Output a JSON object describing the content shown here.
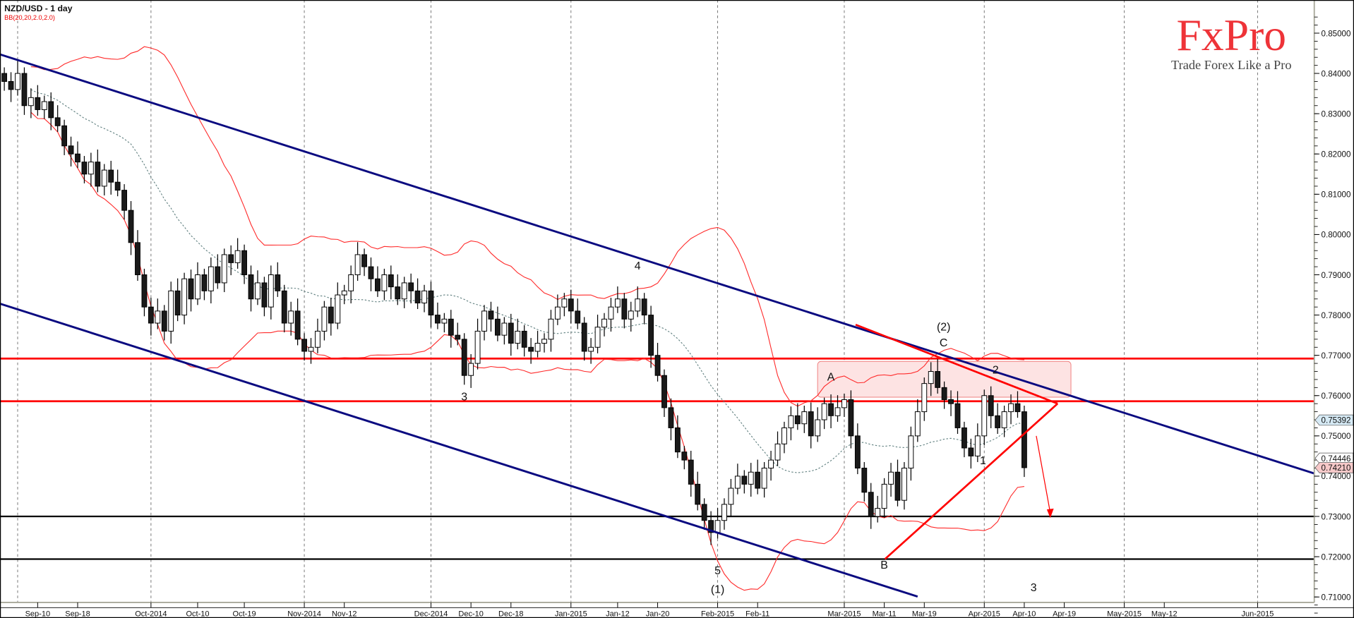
{
  "header": {
    "title": "NZD/USD - 1 day",
    "indicator": "BB(20,20,2.0,2.0)"
  },
  "logo": {
    "brand": "FxPro",
    "tagline": "Trade Forex Like a Pro"
  },
  "colors": {
    "bull_body": "#ffffff",
    "bear_body": "#1a1a1a",
    "bands": "#ff2a2a",
    "middle_band": "#5f7f7f",
    "channel": "#0a0a80",
    "resistance": "#ff0000",
    "support": "#000000",
    "zone": "#fde3e3"
  },
  "chart_data": {
    "type": "candlestick",
    "symbol": "NZD/USD",
    "timeframe": "1 day",
    "ylim": [
      0.705,
      0.8565
    ],
    "y_ticks": [
      "0.71000",
      "0.72000",
      "0.73000",
      "0.74000",
      "0.75000",
      "0.76000",
      "0.77000",
      "0.78000",
      "0.79000",
      "0.80000",
      "0.81000",
      "0.82000",
      "0.83000",
      "0.84000",
      "0.85000"
    ],
    "x_ticks": [
      {
        "label": "Sep-10",
        "index": 5
      },
      {
        "label": "Sep-18",
        "index": 11
      },
      {
        "label": "Oct-2014",
        "index": 22
      },
      {
        "label": "Oct-10",
        "index": 29
      },
      {
        "label": "Oct-19",
        "index": 36
      },
      {
        "label": "Nov-2014",
        "index": 45
      },
      {
        "label": "Nov-12",
        "index": 51
      },
      {
        "label": "Dec-2014",
        "index": 64
      },
      {
        "label": "Dec-10",
        "index": 70
      },
      {
        "label": "Dec-18",
        "index": 76
      },
      {
        "label": "Jan-2015",
        "index": 85
      },
      {
        "label": "Jan-12",
        "index": 92
      },
      {
        "label": "Jan-20",
        "index": 98
      },
      {
        "label": "Feb-2015",
        "index": 107
      },
      {
        "label": "Feb-11",
        "index": 113
      },
      {
        "label": "Mar-2015",
        "index": 126
      },
      {
        "label": "Mar-11",
        "index": 132
      },
      {
        "label": "Mar-19",
        "index": 138
      },
      {
        "label": "Apr-2015",
        "index": 147
      },
      {
        "label": "Apr-10",
        "index": 153
      },
      {
        "label": "Apr-19",
        "index": 159
      },
      {
        "label": "May-2015",
        "index": 168
      },
      {
        "label": "May-12",
        "index": 174
      },
      {
        "label": "Jun-2015",
        "index": 188
      }
    ],
    "month_lines": [
      2,
      22,
      45,
      64,
      85,
      107,
      126,
      147,
      168,
      188
    ],
    "first_open": 0.84,
    "closes": [
      0.838,
      0.836,
      0.84,
      0.832,
      0.834,
      0.831,
      0.833,
      0.829,
      0.827,
      0.822,
      0.82,
      0.818,
      0.815,
      0.818,
      0.812,
      0.816,
      0.813,
      0.811,
      0.806,
      0.798,
      0.79,
      0.782,
      0.778,
      0.781,
      0.776,
      0.786,
      0.78,
      0.789,
      0.784,
      0.79,
      0.786,
      0.792,
      0.788,
      0.795,
      0.793,
      0.796,
      0.79,
      0.784,
      0.788,
      0.782,
      0.79,
      0.786,
      0.778,
      0.781,
      0.774,
      0.771,
      0.772,
      0.776,
      0.782,
      0.778,
      0.785,
      0.786,
      0.79,
      0.795,
      0.792,
      0.789,
      0.786,
      0.79,
      0.787,
      0.784,
      0.788,
      0.786,
      0.783,
      0.786,
      0.78,
      0.778,
      0.779,
      0.775,
      0.774,
      0.765,
      0.768,
      0.776,
      0.781,
      0.779,
      0.775,
      0.778,
      0.773,
      0.776,
      0.772,
      0.771,
      0.773,
      0.774,
      0.779,
      0.782,
      0.784,
      0.781,
      0.778,
      0.771,
      0.772,
      0.777,
      0.779,
      0.782,
      0.784,
      0.779,
      0.781,
      0.784,
      0.78,
      0.77,
      0.765,
      0.757,
      0.752,
      0.746,
      0.744,
      0.738,
      0.733,
      0.729,
      0.726,
      0.729,
      0.733,
      0.737,
      0.74,
      0.738,
      0.741,
      0.737,
      0.742,
      0.744,
      0.748,
      0.752,
      0.755,
      0.753,
      0.756,
      0.75,
      0.754,
      0.758,
      0.755,
      0.757,
      0.759,
      0.75,
      0.742,
      0.736,
      0.73,
      0.732,
      0.738,
      0.741,
      0.734,
      0.742,
      0.75,
      0.756,
      0.763,
      0.766,
      0.762,
      0.759,
      0.758,
      0.752,
      0.747,
      0.745,
      0.75,
      0.76,
      0.755,
      0.752,
      0.756,
      0.758,
      0.756,
      0.7421
    ],
    "bollinger": {
      "period": 20,
      "deviations": 2.0
    },
    "horizontal_levels": {
      "resistance": [
        0.7692,
        0.7586
      ],
      "support": [
        0.73,
        0.7194
      ]
    },
    "channel_lines": [
      {
        "name": "upper-channel",
        "from": [
          -0.6,
          0.8447
        ],
        "to": [
          197,
          0.7404
        ]
      },
      {
        "name": "lower-channel",
        "from": [
          -0.6,
          0.7828
        ],
        "to": [
          137,
          0.7101
        ]
      }
    ],
    "triangle": {
      "upper": {
        "from": [
          127.7,
          0.7776
        ],
        "to": [
          158,
          0.758
        ]
      },
      "lower": {
        "from": [
          132.1,
          0.7194
        ],
        "to": [
          158,
          0.758
        ]
      }
    },
    "target_arrow": {
      "from": [
        154.8,
        0.75
      ],
      "to": [
        156.9,
        0.7296
      ]
    },
    "resistance_zone": {
      "index_range": [
        122,
        160
      ],
      "price_range": [
        0.7596,
        0.7685
      ]
    },
    "wave_labels": [
      {
        "text": "4",
        "index": 95,
        "price": 0.7913
      },
      {
        "text": "3",
        "index": 69,
        "price": 0.7588
      },
      {
        "text": "5",
        "index": 107,
        "price": 0.7156
      },
      {
        "text": "(1)",
        "index": 107,
        "price": 0.711
      },
      {
        "text": "A",
        "index": 124,
        "price": 0.7637
      },
      {
        "text": "B",
        "index": 132,
        "price": 0.717
      },
      {
        "text": "(2)",
        "index": 140.9,
        "price": 0.7762
      },
      {
        "text": "C",
        "index": 140.9,
        "price": 0.7722
      },
      {
        "text": "2",
        "index": 148.7,
        "price": 0.7655
      },
      {
        "text": "1",
        "index": 146.8,
        "price": 0.743
      },
      {
        "text": "3",
        "index": 154.4,
        "price": 0.7114
      }
    ],
    "price_labels": [
      {
        "text": "0.75392",
        "value": 0.75392,
        "bg": "#d6eaf5"
      },
      {
        "text": "0.74446",
        "value": 0.74446,
        "bg": "#ffffff"
      },
      {
        "text": "0.74210",
        "value": 0.7421,
        "bg": "#f7c9c9"
      }
    ]
  }
}
